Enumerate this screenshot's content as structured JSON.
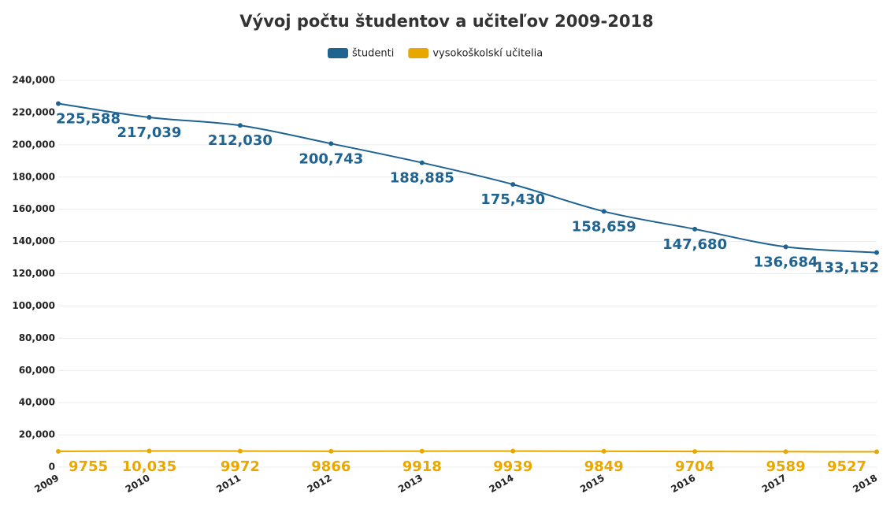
{
  "chart_data": {
    "type": "line",
    "title": "Vývoj počtu študentov a učiteľov 2009-2018",
    "categories": [
      "2009",
      "2010",
      "2011",
      "2012",
      "2013",
      "2014",
      "2015",
      "2016",
      "2017",
      "2018"
    ],
    "series": [
      {
        "name": "študenti",
        "color": "#1f6391",
        "values": [
          225588,
          217039,
          212030,
          200743,
          188885,
          175430,
          158659,
          147680,
          136684,
          133152
        ],
        "value_labels": [
          "225,588",
          "217,039",
          "212,030",
          "200,743",
          "188,885",
          "175,430",
          "158,659",
          "147,680",
          "136,684",
          "133,152"
        ]
      },
      {
        "name": "vysokoškolskí učitelia",
        "color": "#e8a800",
        "values": [
          9755,
          10035,
          9972,
          9866,
          9918,
          9939,
          9849,
          9704,
          9589,
          9527
        ],
        "value_labels": [
          "9755",
          "10,035",
          "9972",
          "9866",
          "9918",
          "9939",
          "9849",
          "9704",
          "9589",
          "9527"
        ]
      }
    ],
    "ylim": [
      0,
      240000
    ],
    "yticks": [
      0,
      {
        "value": 20000,
        "label": "20,000"
      },
      {
        "value": 40000,
        "label": "40,000"
      },
      {
        "value": 60000,
        "label": "60,000"
      },
      {
        "value": 80000,
        "label": "80,000"
      },
      {
        "value": 100000,
        "label": "100,000"
      },
      {
        "value": 120000,
        "label": "120,000"
      },
      {
        "value": 140000,
        "label": "140,000"
      },
      {
        "value": 160000,
        "label": "160,000"
      },
      {
        "value": 180000,
        "label": "180,000"
      },
      {
        "value": 200000,
        "label": "200,000"
      },
      {
        "value": 220000,
        "label": "220,000"
      },
      {
        "value": 240000,
        "label": "240,000"
      }
    ],
    "grid": true
  }
}
